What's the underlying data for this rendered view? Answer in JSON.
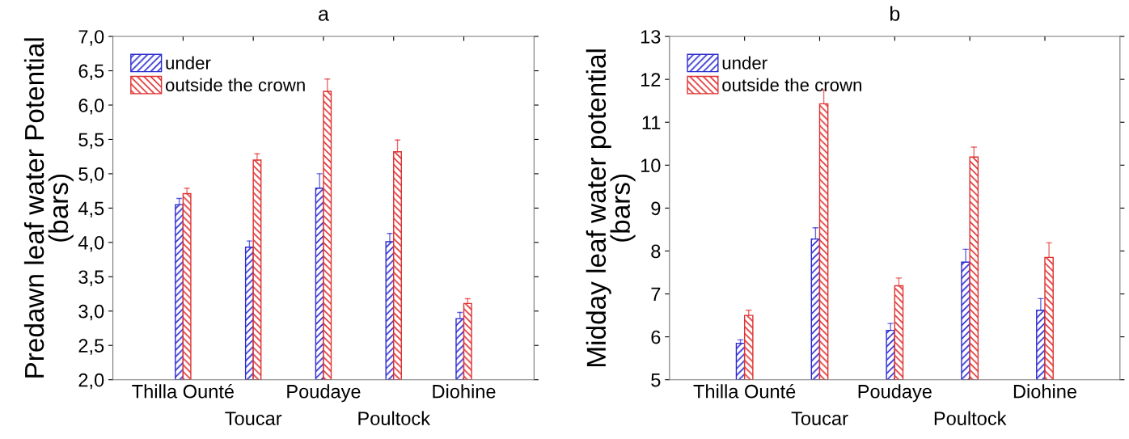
{
  "chart_data": [
    {
      "type": "bar",
      "title": "a",
      "ylabel": "Predawn leaf water Potential\n(bars)",
      "categories": [
        "Thilla Ounté",
        "Toucar",
        "Poudaye",
        "Poultock",
        "Diohine"
      ],
      "series": [
        {
          "name": "under",
          "color": "#2a2ad0",
          "values": [
            4.55,
            3.93,
            4.79,
            4.01,
            2.89
          ],
          "errors": [
            [
              4.55,
              4.64
            ],
            [
              3.93,
              4.02
            ],
            [
              4.79,
              5.0
            ],
            [
              4.01,
              4.13
            ],
            [
              2.89,
              2.98
            ]
          ]
        },
        {
          "name": "outside the crown",
          "color": "#e03030",
          "values": [
            4.71,
            5.2,
            6.2,
            5.32,
            3.11
          ],
          "errors": [
            [
              4.71,
              4.79
            ],
            [
              5.2,
              5.29
            ],
            [
              6.2,
              6.38
            ],
            [
              5.32,
              5.49
            ],
            [
              3.11,
              3.18
            ]
          ]
        }
      ],
      "ylim": [
        2.0,
        7.0
      ],
      "yticks": [
        {
          "value": 2.0,
          "label": "2,0"
        },
        {
          "value": 2.5,
          "label": "2,5"
        },
        {
          "value": 3.0,
          "label": "3,0"
        },
        {
          "value": 3.5,
          "label": "3,5"
        },
        {
          "value": 4.0,
          "label": "4,0"
        },
        {
          "value": 4.5,
          "label": "4,5"
        },
        {
          "value": 5.0,
          "label": "5,0"
        },
        {
          "value": 5.5,
          "label": "5,5"
        },
        {
          "value": 6.0,
          "label": "6,0"
        },
        {
          "value": 6.5,
          "label": "6,5"
        },
        {
          "value": 7.0,
          "label": "7,0"
        }
      ],
      "grid": false,
      "legend": "top left"
    },
    {
      "type": "bar",
      "title": "b",
      "ylabel": "Midday leaf water potential\n(bars)",
      "categories": [
        "Thilla Ounté",
        "Toucar",
        "Poudaye",
        "Poultock",
        "Diohine"
      ],
      "series": [
        {
          "name": "under",
          "color": "#2a2ad0",
          "values": [
            5.85,
            8.28,
            6.15,
            7.74,
            6.62
          ],
          "errors": [
            [
              5.85,
              5.93
            ],
            [
              8.28,
              8.54
            ],
            [
              6.15,
              6.31
            ],
            [
              7.74,
              8.04
            ],
            [
              6.62,
              6.89
            ]
          ]
        },
        {
          "name": "outside the crown",
          "color": "#e03030",
          "values": [
            6.5,
            11.43,
            7.19,
            10.19,
            7.85
          ],
          "errors": [
            [
              6.5,
              6.62
            ],
            [
              11.43,
              11.75
            ],
            [
              7.19,
              7.37
            ],
            [
              10.19,
              10.42
            ],
            [
              7.85,
              8.19
            ]
          ]
        }
      ],
      "ylim": [
        5,
        13
      ],
      "yticks": [
        5,
        6,
        7,
        8,
        9,
        10,
        11,
        12,
        13
      ],
      "grid": false,
      "legend": "top left"
    }
  ]
}
